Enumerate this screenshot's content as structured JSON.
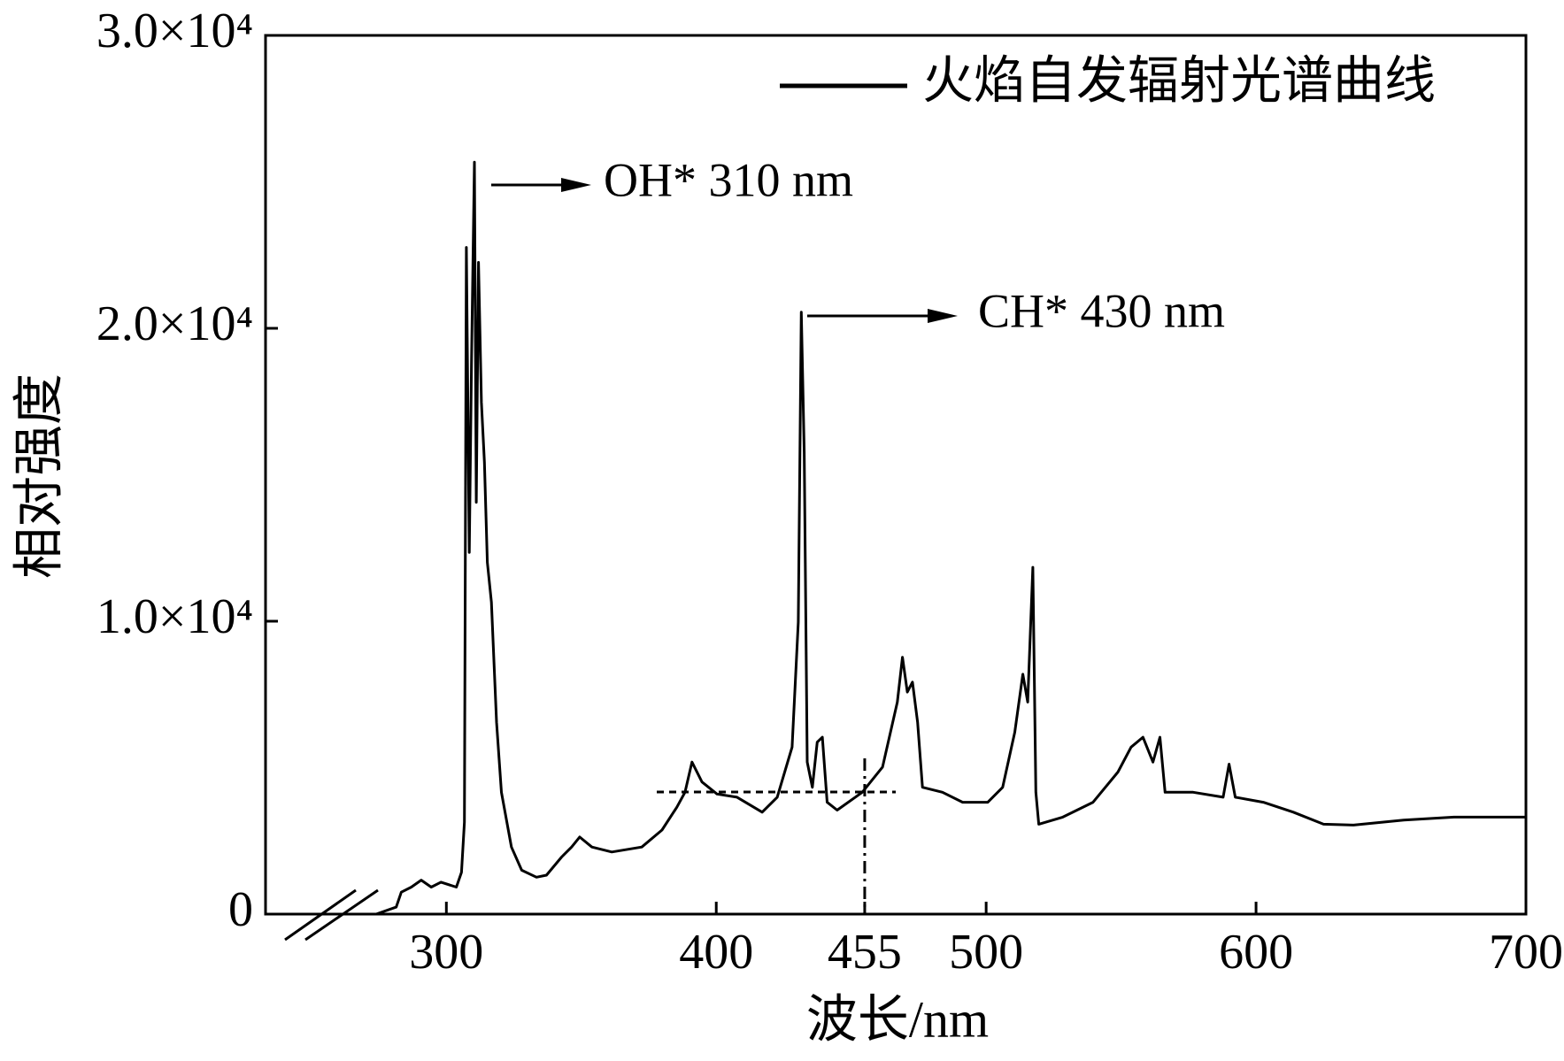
{
  "chart_data": {
    "type": "line",
    "x_label": "波长/nm",
    "y_label": "相对强度",
    "annotations": [
      "OH* 310 nm",
      "CH* 430 nm"
    ],
    "legend": "upper right",
    "xlim": [
      233,
      700
    ],
    "xticks": [
      300,
      400,
      455,
      500,
      600,
      700
    ],
    "ylim": [
      0,
      30000
    ],
    "yticks": [
      0,
      {
        "value": 10000,
        "label": "1.0×10⁴"
      },
      {
        "value": 20000,
        "label": "2.0×10⁴"
      },
      {
        "value": 30000,
        "label": "3.0×10⁴"
      }
    ],
    "x": [
      274,
      281.4,
      283.3,
      287,
      290.7,
      294.4,
      298,
      303.7,
      305.6,
      306.7,
      307.4,
      308.5,
      309.3,
      310.4,
      311.1,
      311.9,
      313,
      314.1,
      315.2,
      316.7,
      318.6,
      320.4,
      324.1,
      327.9,
      333.4,
      337.1,
      342.7,
      346.4,
      349.4,
      353.9,
      361.3,
      372.4,
      379.9,
      385.4,
      388.4,
      391,
      394.7,
      400.3,
      407.7,
      417,
      422.6,
      428.1,
      430.4,
      431.5,
      432.6,
      433.7,
      435.6,
      437.4,
      439.3,
      441.1,
      444.8,
      454.1,
      461.6,
      467.1,
      469,
      470.8,
      472.7,
      474.6,
      476.4,
      483.8,
      491.3,
      500.6,
      506.1,
      510.6,
      513.6,
      515.4,
      517.3,
      518.4,
      519.5,
      528.4,
      539.6,
      548.8,
      553.7,
      558.1,
      561.8,
      564.4,
      566.3,
      576.7,
      587.8,
      590,
      592.3,
      602.7,
      613.8,
      625,
      636.1,
      654.7,
      673.3,
      700
    ],
    "series": [
      {
        "name": "火焰自发辐射光谱曲线",
        "color": "#000000",
        "values": [
          0,
          240,
          750,
          920,
          1160,
          920,
          1090,
          920,
          1430,
          3140,
          22760,
          12350,
          18840,
          25670,
          14060,
          22250,
          17470,
          15430,
          12010,
          10650,
          6550,
          4160,
          2290,
          1500,
          1260,
          1330,
          1950,
          2290,
          2630,
          2290,
          2120,
          2290,
          2870,
          3650,
          4160,
          5190,
          4510,
          4100,
          3990,
          3480,
          3990,
          5700,
          9970,
          20550,
          15770,
          5190,
          4330,
          5870,
          6040,
          3820,
          3550,
          4160,
          5020,
          7240,
          8770,
          7580,
          7920,
          6550,
          4330,
          4160,
          3820,
          3820,
          4330,
          6210,
          8190,
          7240,
          11840,
          4160,
          3070,
          3310,
          3820,
          4850,
          5700,
          6040,
          5190,
          6040,
          4160,
          4160,
          3990,
          5120,
          3990,
          3820,
          3480,
          3070,
          3040,
          3210,
          3310,
          3310
        ]
      }
    ]
  }
}
